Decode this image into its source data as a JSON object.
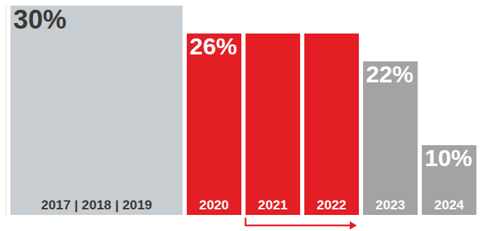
{
  "chart_data": {
    "type": "bar",
    "categories": [
      "2017 | 2018 | 2019",
      "2020",
      "2021",
      "2022",
      "2023",
      "2024"
    ],
    "values": [
      30,
      26,
      26,
      26,
      22,
      10
    ],
    "value_labels": [
      "30%",
      "26%",
      null,
      null,
      "22%",
      "10%"
    ],
    "colors": [
      "#c8cdd1",
      "#e31e24",
      "#e31e24",
      "#e31e24",
      "#a3a3a3",
      "#a3a3a3"
    ],
    "ylim": [
      0,
      30
    ],
    "yticks": [],
    "data_labels": true,
    "tick_labels": false,
    "grid": false
  }
}
